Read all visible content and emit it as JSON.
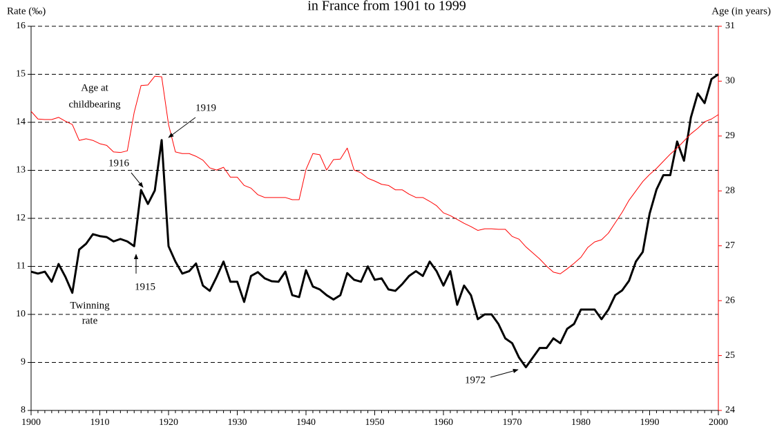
{
  "chart_data": {
    "type": "line",
    "title": "in France from 1901 to 1999",
    "ylabel": "Rate (‰)",
    "y2label": "Age (in years)",
    "xlim": [
      1900,
      2000
    ],
    "xticks": [
      1900,
      1910,
      1920,
      1930,
      1940,
      1950,
      1960,
      1970,
      1980,
      1990,
      2000
    ],
    "ylim": [
      8,
      16
    ],
    "yticks": [
      8,
      9,
      10,
      11,
      12,
      13,
      14,
      15,
      16
    ],
    "y2lim": [
      24,
      31
    ],
    "y2ticks": [
      24,
      25,
      26,
      27,
      28,
      29,
      30,
      31
    ],
    "grid": true,
    "x": [
      1900,
      1901,
      1902,
      1903,
      1904,
      1905,
      1906,
      1907,
      1908,
      1909,
      1910,
      1911,
      1912,
      1913,
      1914,
      1915,
      1916,
      1917,
      1918,
      1919,
      1920,
      1921,
      1922,
      1923,
      1924,
      1925,
      1926,
      1927,
      1928,
      1929,
      1930,
      1931,
      1932,
      1933,
      1934,
      1935,
      1936,
      1937,
      1938,
      1939,
      1940,
      1941,
      1942,
      1943,
      1944,
      1945,
      1946,
      1947,
      1948,
      1949,
      1950,
      1951,
      1952,
      1953,
      1954,
      1955,
      1956,
      1957,
      1958,
      1959,
      1960,
      1961,
      1962,
      1963,
      1964,
      1965,
      1966,
      1967,
      1968,
      1969,
      1970,
      1971,
      1972,
      1973,
      1974,
      1975,
      1976,
      1977,
      1978,
      1979,
      1980,
      1981,
      1982,
      1983,
      1984,
      1985,
      1986,
      1987,
      1988,
      1989,
      1990,
      1991,
      1992,
      1993,
      1994,
      1995,
      1996,
      1997,
      1998,
      1999,
      2000
    ],
    "series": [
      {
        "color": "#000000",
        "values": [
          10.89,
          10.85,
          10.89,
          10.68,
          11.05,
          10.78,
          10.45,
          11.35,
          11.47,
          11.67,
          11.63,
          11.61,
          11.52,
          11.57,
          11.52,
          11.42,
          12.59,
          12.3,
          12.58,
          13.63,
          11.42,
          11.1,
          10.85,
          10.9,
          11.06,
          10.6,
          10.49,
          10.78,
          11.1,
          10.68,
          10.68,
          10.26,
          10.8,
          10.88,
          10.75,
          10.69,
          10.68,
          10.89,
          10.4,
          10.36,
          10.92,
          10.58,
          10.52,
          10.4,
          10.31,
          10.4,
          10.86,
          10.72,
          10.68,
          11.0,
          10.72,
          10.75,
          10.52,
          10.49,
          10.63,
          10.8,
          10.9,
          10.8,
          11.1,
          10.9,
          10.6,
          10.9,
          10.2,
          10.6,
          10.4,
          9.9,
          10.0,
          10.0,
          9.8,
          9.5,
          9.4,
          9.1,
          8.9,
          9.1,
          9.3,
          9.3,
          9.5,
          9.4,
          9.7,
          9.8,
          10.1,
          10.1,
          10.1,
          9.9,
          10.1,
          10.4,
          10.5,
          10.7,
          11.1,
          11.3,
          12.1,
          12.6,
          12.9,
          12.9,
          13.6,
          13.2,
          14.1,
          14.6,
          14.4,
          14.9,
          15.0
        ]
      },
      {
        "color": "#ff0000",
        "axis": "y2",
        "values": [
          29.45,
          29.31,
          29.3,
          29.3,
          29.34,
          29.27,
          29.21,
          28.92,
          28.95,
          28.92,
          28.86,
          28.83,
          28.71,
          28.7,
          28.73,
          29.43,
          29.92,
          29.93,
          30.09,
          30.08,
          29.21,
          28.71,
          28.68,
          28.68,
          28.63,
          28.56,
          28.42,
          28.38,
          28.43,
          28.25,
          28.25,
          28.1,
          28.05,
          27.93,
          27.88,
          27.88,
          27.88,
          27.88,
          27.84,
          27.84,
          28.39,
          28.68,
          28.66,
          28.38,
          28.57,
          28.58,
          28.78,
          28.38,
          28.33,
          28.23,
          28.18,
          28.12,
          28.1,
          28.02,
          28.02,
          27.94,
          27.88,
          27.88,
          27.81,
          27.73,
          27.6,
          27.55,
          27.48,
          27.41,
          27.35,
          27.28,
          27.31,
          27.31,
          27.3,
          27.3,
          27.17,
          27.12,
          26.98,
          26.87,
          26.76,
          26.63,
          26.52,
          26.49,
          26.58,
          26.68,
          26.79,
          26.97,
          27.07,
          27.11,
          27.23,
          27.42,
          27.61,
          27.83,
          28.0,
          28.17,
          28.3,
          28.41,
          28.54,
          28.67,
          28.78,
          28.91,
          29.04,
          29.14,
          29.26,
          29.31,
          29.39
        ]
      }
    ],
    "annotations": [
      [
        "Age at",
        "childbearing"
      ],
      [
        "Twinning",
        "rate"
      ],
      [
        "1916"
      ],
      [
        "1919"
      ],
      [
        "1915"
      ],
      [
        "1972"
      ]
    ]
  }
}
